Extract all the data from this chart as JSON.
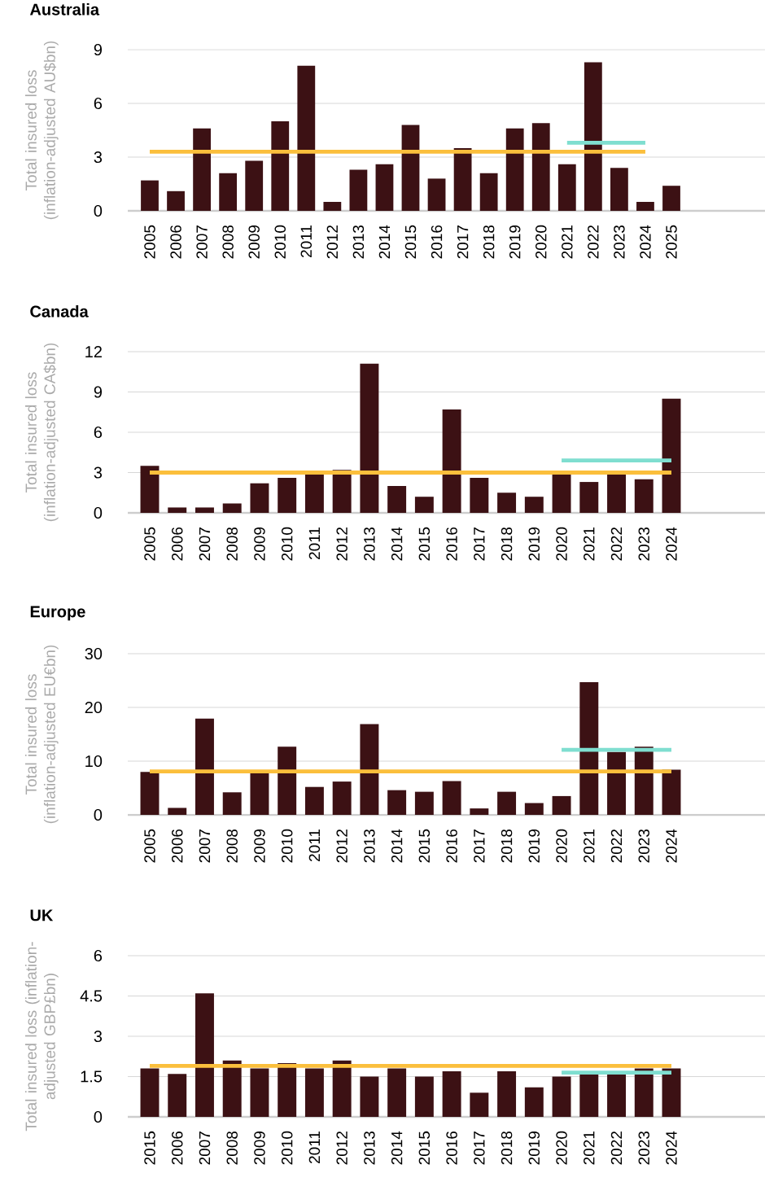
{
  "chart_data": [
    {
      "type": "bar",
      "title": "Australia",
      "ylabel": "Total insured loss (inflation-adjusted AU$bn)",
      "grid": "y",
      "categories": [
        "2005",
        "2006",
        "2007",
        "2008",
        "2009",
        "2010",
        "2011",
        "2012",
        "2013",
        "2014",
        "2015",
        "2016",
        "2017",
        "2018",
        "2019",
        "2020",
        "2021",
        "2022",
        "2023",
        "2024",
        "2025"
      ],
      "series": [
        {
          "color": "#3c1114",
          "values": [
            1.7,
            1.1,
            4.6,
            2.1,
            2.8,
            5.0,
            8.1,
            0.5,
            2.3,
            2.6,
            4.8,
            1.8,
            3.5,
            2.1,
            4.6,
            4.9,
            2.6,
            8.3,
            2.4,
            0.5,
            1.4
          ]
        },
        {
          "type": "line",
          "color": "#fbbf3c",
          "values": [
            3.3,
            3.3,
            3.3,
            3.3,
            3.3,
            3.3,
            3.3,
            3.3,
            3.3,
            3.3,
            3.3,
            3.3,
            3.3,
            3.3,
            3.3,
            3.3,
            3.3,
            3.3,
            3.3,
            3.3,
            null
          ]
        },
        {
          "type": "line",
          "color": "#7fded0",
          "values": [
            null,
            null,
            null,
            null,
            null,
            null,
            null,
            null,
            null,
            null,
            null,
            null,
            null,
            null,
            null,
            null,
            3.8,
            3.8,
            3.8,
            3.8,
            null
          ]
        }
      ],
      "ylim": [
        0,
        9
      ],
      "yticks": [
        0,
        3,
        6,
        9
      ]
    },
    {
      "type": "bar",
      "title": "Canada",
      "ylabel": "Total insured loss (inflation-adjusted CA$bn)",
      "grid": "y",
      "categories": [
        "2005",
        "2006",
        "2007",
        "2008",
        "2009",
        "2010",
        "2011",
        "2012",
        "2013",
        "2014",
        "2015",
        "2016",
        "2017",
        "2018",
        "2019",
        "2020",
        "2021",
        "2022",
        "2023",
        "2024"
      ],
      "series": [
        {
          "color": "#3c1114",
          "values": [
            3.5,
            0.4,
            0.4,
            0.7,
            2.2,
            2.6,
            3.0,
            3.2,
            11.1,
            2.0,
            1.2,
            7.7,
            2.6,
            1.5,
            1.2,
            3.0,
            2.3,
            3.0,
            2.5,
            8.5
          ]
        },
        {
          "type": "line",
          "color": "#fbbf3c",
          "values": [
            3.0,
            3.0,
            3.0,
            3.0,
            3.0,
            3.0,
            3.0,
            3.0,
            3.0,
            3.0,
            3.0,
            3.0,
            3.0,
            3.0,
            3.0,
            3.0,
            3.0,
            3.0,
            3.0,
            3.0
          ]
        },
        {
          "type": "line",
          "color": "#7fded0",
          "values": [
            null,
            null,
            null,
            null,
            null,
            null,
            null,
            null,
            null,
            null,
            null,
            null,
            null,
            null,
            null,
            3.9,
            3.9,
            3.9,
            3.9,
            3.9
          ]
        }
      ],
      "ylim": [
        0,
        12
      ],
      "yticks": [
        0,
        3,
        6,
        9,
        12
      ]
    },
    {
      "type": "bar",
      "title": "Europe",
      "ylabel": "Total insured loss (inflation-adjusted EU€bn)",
      "grid": "y",
      "categories": [
        "2005",
        "2006",
        "2007",
        "2008",
        "2009",
        "2010",
        "2011",
        "2012",
        "2013",
        "2014",
        "2015",
        "2016",
        "2017",
        "2018",
        "2019",
        "2020",
        "2021",
        "2022",
        "2023",
        "2024"
      ],
      "series": [
        {
          "color": "#3c1114",
          "values": [
            8.0,
            1.3,
            17.9,
            4.2,
            8.0,
            12.7,
            5.2,
            6.2,
            16.9,
            4.6,
            4.3,
            6.3,
            1.2,
            4.3,
            2.2,
            3.5,
            24.7,
            11.7,
            12.7,
            8.4
          ]
        },
        {
          "type": "line",
          "color": "#fbbf3c",
          "values": [
            8.1,
            8.1,
            8.1,
            8.1,
            8.1,
            8.1,
            8.1,
            8.1,
            8.1,
            8.1,
            8.1,
            8.1,
            8.1,
            8.1,
            8.1,
            8.1,
            8.1,
            8.1,
            8.1,
            8.1
          ]
        },
        {
          "type": "line",
          "color": "#7fded0",
          "values": [
            null,
            null,
            null,
            null,
            null,
            null,
            null,
            null,
            null,
            null,
            null,
            null,
            null,
            null,
            null,
            12.1,
            12.1,
            12.1,
            12.1,
            12.1
          ]
        }
      ],
      "ylim": [
        0,
        30
      ],
      "yticks": [
        0,
        10,
        20,
        30
      ]
    },
    {
      "type": "bar",
      "title": "UK",
      "ylabel": "Total insured loss (inflation-adjusted GBP£bn)",
      "grid": "y",
      "categories": [
        "2015",
        "2006",
        "2007",
        "2008",
        "2009",
        "2010",
        "2011",
        "2012",
        "2013",
        "2014",
        "2015",
        "2016",
        "2017",
        "2018",
        "2019",
        "2020",
        "2021",
        "2022",
        "2023",
        "2024"
      ],
      "series": [
        {
          "color": "#3c1114",
          "values": [
            1.8,
            1.6,
            4.6,
            2.1,
            1.8,
            2.0,
            1.8,
            2.1,
            1.5,
            1.8,
            1.5,
            1.7,
            0.9,
            1.7,
            1.1,
            1.5,
            1.6,
            1.6,
            1.8,
            1.8
          ]
        },
        {
          "type": "line",
          "color": "#fbbf3c",
          "values": [
            1.9,
            1.9,
            1.9,
            1.9,
            1.9,
            1.9,
            1.9,
            1.9,
            1.9,
            1.9,
            1.9,
            1.9,
            1.9,
            1.9,
            1.9,
            1.9,
            1.9,
            1.9,
            1.9,
            1.9
          ]
        },
        {
          "type": "line",
          "color": "#7fded0",
          "values": [
            null,
            null,
            null,
            null,
            null,
            null,
            null,
            null,
            null,
            null,
            null,
            null,
            null,
            null,
            null,
            1.65,
            1.65,
            1.65,
            1.65,
            1.65
          ]
        }
      ],
      "ylim": [
        0,
        6
      ],
      "yticks": [
        0,
        1.5,
        3,
        4.5,
        6
      ]
    }
  ]
}
